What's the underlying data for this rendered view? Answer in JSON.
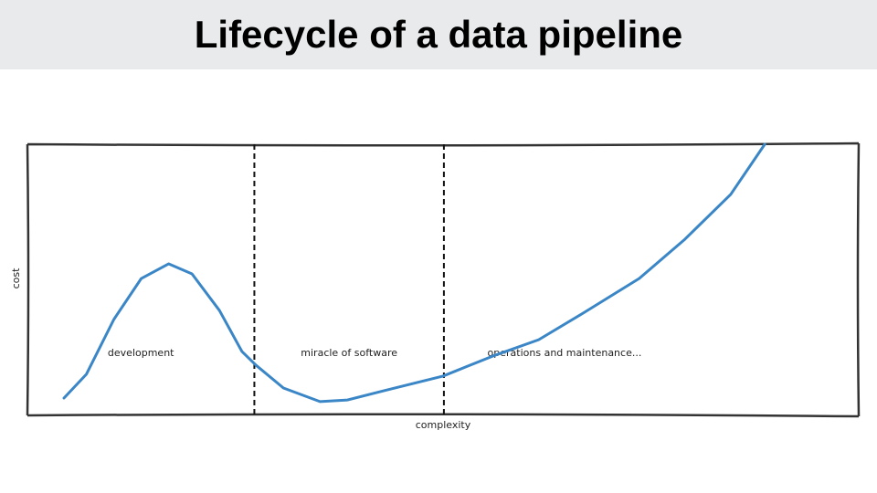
{
  "chart_data": {
    "type": "line",
    "title": "Lifecycle of a data pipeline",
    "x_label": "complexity",
    "y_label": "cost",
    "xlim": [
      0,
      100
    ],
    "ylim": [
      0,
      100
    ],
    "x": [
      4.4,
      7.1,
      10.4,
      13.7,
      17.0,
      19.8,
      23.1,
      25.8,
      27.5,
      30.8,
      35.2,
      38.5,
      42.9,
      50.0,
      56.0,
      61.5,
      67.0,
      73.6,
      79.1,
      84.6,
      88.7
    ],
    "values": [
      6.4,
      15.2,
      35.4,
      50.5,
      55.9,
      52.2,
      38.7,
      23.6,
      18.5,
      10.1,
      5.1,
      5.7,
      9.1,
      14.5,
      21.9,
      27.9,
      38.0,
      50.5,
      65.0,
      81.5,
      100
    ],
    "color": "#3a86c6",
    "vlines": [
      27.3,
      50.1
    ],
    "annotations": [
      "development",
      "miracle of software",
      "operations and maintenance..."
    ]
  }
}
